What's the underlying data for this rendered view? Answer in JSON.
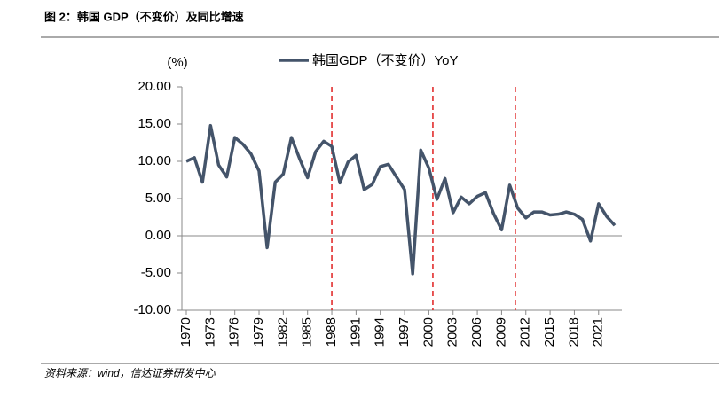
{
  "header": {
    "title": "图 2：韩国 GDP（不变价）及同比增速"
  },
  "source": "资料来源：wind，信达证券研发中心",
  "chart_data": {
    "type": "line",
    "y_label": "(%)",
    "x": [
      1970,
      1971,
      1972,
      1973,
      1974,
      1975,
      1976,
      1977,
      1978,
      1979,
      1980,
      1981,
      1982,
      1983,
      1984,
      1985,
      1986,
      1987,
      1988,
      1989,
      1990,
      1991,
      1992,
      1993,
      1994,
      1995,
      1996,
      1997,
      1998,
      1999,
      2000,
      2001,
      2002,
      2003,
      2004,
      2005,
      2006,
      2007,
      2008,
      2009,
      2010,
      2011,
      2012,
      2013,
      2014,
      2015,
      2016,
      2017,
      2018,
      2019,
      2020,
      2021,
      2022,
      2023
    ],
    "series": [
      {
        "name": "韩国GDP（不变价）YoY",
        "color": "#44546a",
        "values": [
          10.0,
          10.5,
          7.2,
          14.8,
          9.5,
          7.9,
          13.2,
          12.3,
          11.0,
          8.7,
          -1.6,
          7.2,
          8.3,
          13.2,
          10.4,
          7.8,
          11.3,
          12.7,
          12.0,
          7.1,
          9.9,
          10.8,
          6.2,
          6.9,
          9.3,
          9.6,
          7.9,
          6.2,
          -5.1,
          11.5,
          9.1,
          4.9,
          7.7,
          3.1,
          5.2,
          4.3,
          5.3,
          5.8,
          3.0,
          0.8,
          6.8,
          3.7,
          2.4,
          3.2,
          3.2,
          2.8,
          2.9,
          3.2,
          2.9,
          2.2,
          -0.7,
          4.3,
          2.6,
          1.4
        ]
      }
    ],
    "xlim": [
      1970,
      2023
    ],
    "xticks": [
      1970,
      1973,
      1976,
      1979,
      1982,
      1985,
      1988,
      1991,
      1994,
      1997,
      2000,
      2003,
      2006,
      2009,
      2012,
      2015,
      2018,
      2021
    ],
    "ylim": [
      -10,
      20
    ],
    "yticks": [
      {
        "value": -10,
        "label": "-10.00"
      },
      {
        "value": -5,
        "label": "-5.00"
      },
      {
        "value": 0,
        "label": "0.00"
      },
      {
        "value": 5,
        "label": "5.00"
      },
      {
        "value": 10,
        "label": "10.00"
      },
      {
        "value": 15,
        "label": "15.00"
      },
      {
        "value": 20,
        "label": "20.00"
      }
    ],
    "vlines": {
      "color": "#e02020",
      "x": [
        1988,
        2000.5,
        2010.7
      ]
    },
    "legend": "top"
  }
}
